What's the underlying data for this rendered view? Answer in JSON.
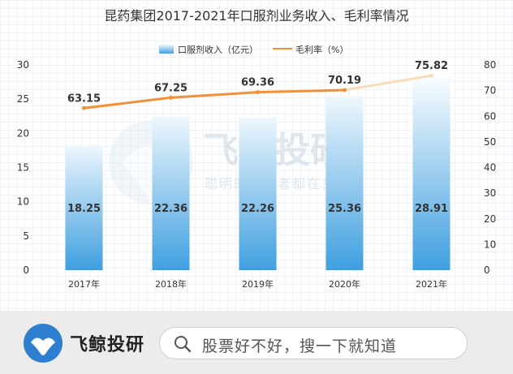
{
  "chart_data": {
    "type": "bar",
    "title": "昆药集团2017-2021年口服剂业务收入、毛利率情况",
    "categories": [
      "2017年",
      "2018年",
      "2019年",
      "2020年",
      "2021年"
    ],
    "series": [
      {
        "name": "口服剂收入（亿元）",
        "type": "bar",
        "axis": "left",
        "values": [
          18.25,
          22.36,
          22.26,
          25.36,
          28.91
        ]
      },
      {
        "name": "毛利率（%）",
        "type": "line",
        "axis": "right",
        "values": [
          63.15,
          67.25,
          69.36,
          70.19,
          75.82
        ]
      }
    ],
    "y_left": {
      "min": 0,
      "max": 30,
      "ticks": [
        0,
        5,
        10,
        15,
        20,
        25,
        30
      ]
    },
    "y_right": {
      "min": 0,
      "max": 80,
      "ticks": [
        0,
        10,
        20,
        30,
        40,
        50,
        60,
        70,
        80
      ]
    },
    "legend_position": "top",
    "grid": false,
    "colors": {
      "bar_top": "#eef7fd",
      "bar_bottom": "#3f9fdf",
      "line": "#f0913a",
      "line_fade": "#f8ddb8"
    }
  },
  "watermark": {
    "brand": "飞鲸投研",
    "slogan": "聪明的投资者都在关注"
  },
  "footer": {
    "brand": "飞鲸投研",
    "search_text": "股票好不好，搜一下就知道"
  }
}
